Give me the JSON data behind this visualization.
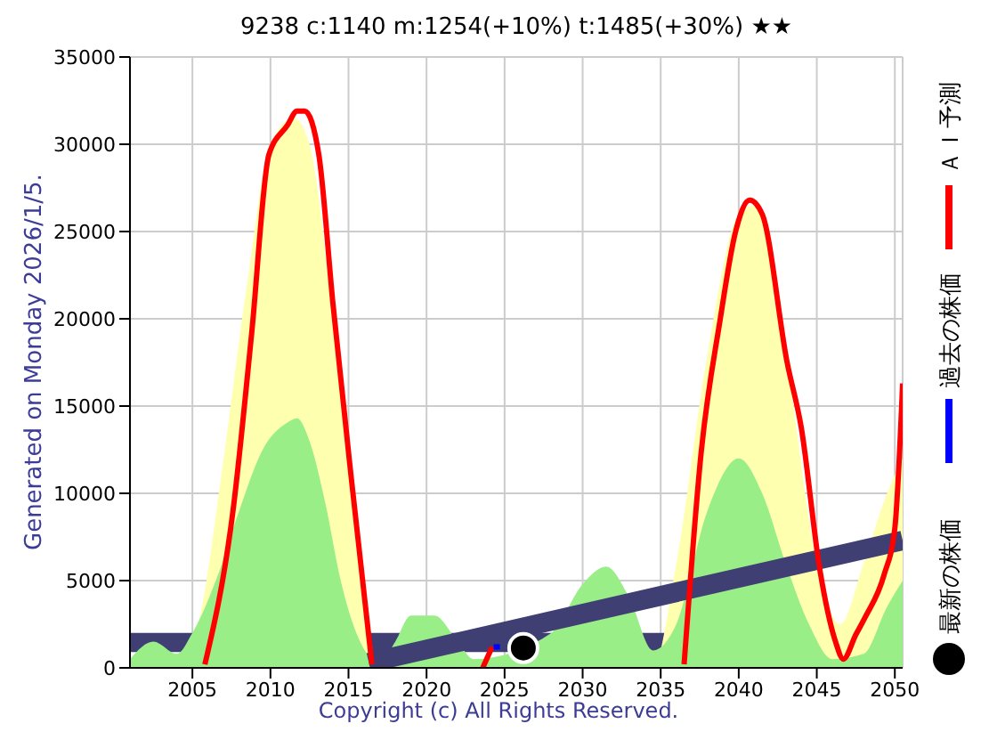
{
  "chart_data": {
    "type": "line",
    "title": "9238 c:1140 m:1254(+10%) t:1485(+30%) ★★",
    "annotations": [
      "Generated on Monday 2026/1/5.",
      "Copyright (c) All Rights Reserved."
    ],
    "xlim": [
      2001,
      2050.5
    ],
    "xticks": [
      2005,
      2010,
      2015,
      2020,
      2025,
      2030,
      2035,
      2040,
      2045,
      2050
    ],
    "ylim": [
      0,
      35000
    ],
    "yticks": [
      0,
      5000,
      10000,
      15000,
      20000,
      25000,
      30000,
      35000
    ],
    "grid": true,
    "legend": "right",
    "line_style": "solid",
    "bands": [
      {
        "axis": "y",
        "from": 900,
        "to": 2000,
        "color": "#3f3f74"
      }
    ],
    "series": [
      {
        "type": "area",
        "color": "#ffffb0",
        "x": [
          2001,
          2004,
          2005.5,
          2007,
          2008.5,
          2010,
          2011.5,
          2012.5,
          2014,
          2015.5,
          2017,
          2034.5,
          2036,
          2038,
          2040,
          2041,
          2043,
          2045,
          2046.5,
          2048,
          2049.5,
          2050.5
        ],
        "values": [
          0,
          0,
          3000,
          12000,
          22000,
          30000,
          31500,
          30000,
          20000,
          8000,
          0,
          0,
          6000,
          18000,
          26000,
          26500,
          18000,
          6000,
          2500,
          6000,
          10000,
          12000
        ]
      },
      {
        "type": "area",
        "color": "#99ee88",
        "x": [
          2001,
          2002.5,
          2004,
          2005,
          2006.5,
          2008,
          2009.5,
          2011,
          2011.7,
          2012.5,
          2013.5,
          2014.5,
          2015.5,
          2017,
          2018,
          2019,
          2020.5,
          2022,
          2023,
          2028,
          2030,
          2031.5,
          2033,
          2034.5,
          2036,
          2038,
          2040,
          2041.5,
          2043,
          2044.5,
          2046,
          2048,
          2049.5,
          2050.5
        ],
        "values": [
          500,
          1500,
          800,
          2000,
          5000,
          9000,
          12500,
          14000,
          14300,
          13000,
          9500,
          5000,
          2000,
          300,
          1500,
          3000,
          3000,
          1500,
          500,
          2000,
          4800,
          5800,
          4000,
          1000,
          2500,
          9000,
          12000,
          10000,
          6000,
          2500,
          500,
          800,
          3500,
          5000
        ]
      },
      {
        "color": "#3f3f74",
        "x": [
          2016.3,
          2050.5
        ],
        "values": [
          300,
          7300
        ]
      },
      {
        "name": "ＡＩ予測",
        "color": "#ff0000",
        "x": [
          2005.8,
          2007.6,
          2008.8,
          2009.9,
          2011.1,
          2011.7,
          2012.2,
          2013.1,
          2014.0,
          2015.2,
          2016.5,
          2020,
          2023.6,
          2024.2,
          2030,
          2036.5,
          2037.6,
          2038.8,
          2039.8,
          2040.7,
          2041.5,
          2043.1,
          2044.0,
          2045.2,
          2046.2,
          2046.7,
          2047.5,
          2048.1,
          2049.3,
          2050.0,
          2050.5
        ],
        "values": [
          200,
          9000,
          19200,
          29400,
          31100,
          31900,
          31900,
          29400,
          20900,
          10700,
          200,
          null,
          0,
          1200,
          null,
          200,
          12400,
          19900,
          25000,
          26800,
          26000,
          17500,
          13800,
          5600,
          1500,
          500,
          1900,
          2900,
          5300,
          8000,
          16300
        ]
      },
      {
        "name": "過去の株価",
        "color": "#0000ff",
        "x": [
          2024.3,
          2024.7
        ],
        "values": [
          1200,
          1200
        ]
      },
      {
        "type": "scatter",
        "name": "最新の株価",
        "color": "#000000",
        "marker": "circle",
        "x": [
          2026.2
        ],
        "values": [
          1140
        ]
      }
    ]
  }
}
